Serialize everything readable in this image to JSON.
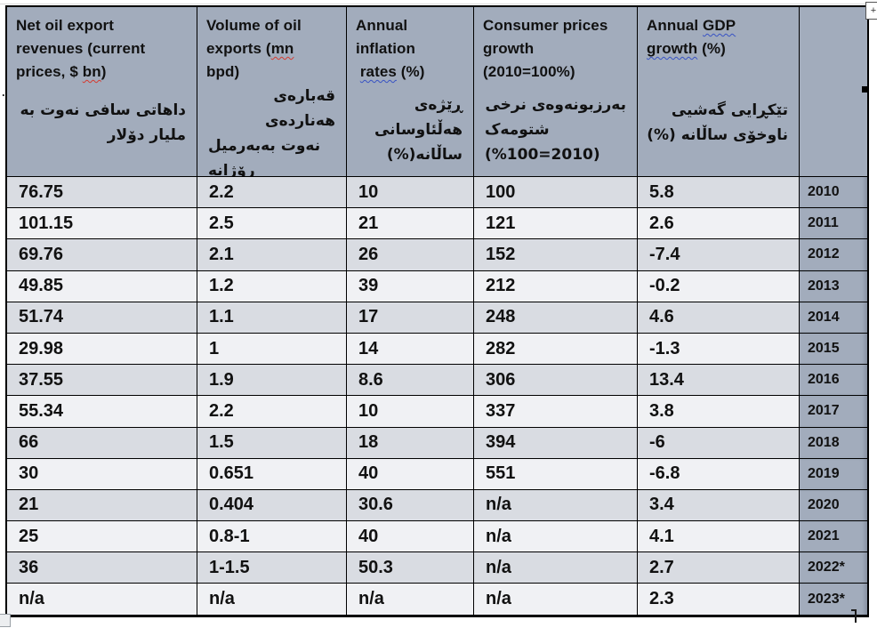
{
  "colors": {
    "header_bg": "#a2acbc",
    "row_dark": "#d9dce2",
    "row_light": "#f0f1f4",
    "border": "#000000",
    "squiggle_red": "#d63a2f",
    "squiggle_blue": "#3852c4"
  },
  "stray_period": ".",
  "table": {
    "header": {
      "cells": [
        {
          "en": [
            [
              [
                "Net oil export",
                null
              ]
            ],
            [
              [
                "revenues (current",
                null
              ]
            ],
            [
              [
                "prices, $ ",
                null
              ],
              [
                "bn",
                "red"
              ],
              [
                ")",
                null
              ]
            ]
          ],
          "ku": [
            {
              "t": "داهاتی  سافی نەوت  بە",
              "d": "rtl",
              "a": "r"
            },
            {
              "t": "ملیار دۆلار",
              "d": "rtl",
              "a": "r"
            }
          ]
        },
        {
          "en": [
            [
              [
                "Volume of oil",
                null
              ]
            ],
            [
              [
                "exports (",
                null
              ],
              [
                "mn",
                "red"
              ]
            ],
            [
              [
                "bpd)",
                null
              ]
            ]
          ],
          "ku": [
            {
              "t": "قەبارەی  هەناردەی",
              "d": "rtl",
              "a": "r"
            },
            {
              "t": "نەوت بەبەرمیل",
              "d": "rtl",
              "a": "l"
            },
            {
              "t": "ڕۆژانە",
              "d": "rtl",
              "a": "l"
            }
          ]
        },
        {
          "en": [
            [
              [
                "Annual",
                null
              ]
            ],
            [
              [
                "inflation",
                null
              ]
            ],
            [
              [
                " ",
                null
              ],
              [
                "rates",
                "blue"
              ],
              [
                " (%)",
                null
              ]
            ]
          ],
          "ku": [
            {
              "t": "ڕێژەی",
              "d": "rtl",
              "a": "r"
            },
            {
              "t": "هەڵئاوسانی",
              "d": "rtl",
              "a": "r"
            },
            {
              "t": "ساڵانە(%)",
              "d": "rtl",
              "a": "r"
            }
          ]
        },
        {
          "en": [
            [
              [
                "Consumer prices",
                null
              ]
            ],
            [
              [
                "growth",
                null
              ]
            ],
            [
              [
                "(2010=100%)",
                null
              ]
            ]
          ],
          "ku": [
            {
              "t": "بەرزبونەوەی نرخی",
              "d": "rtl",
              "a": "r"
            },
            {
              "t": "شتومەک",
              "d": "rtl",
              "a": "l"
            },
            {
              "t": "(%100=2010)",
              "d": "ltr",
              "a": "l"
            }
          ]
        },
        {
          "en": [
            [
              [
                "Annual ",
                null
              ],
              [
                "GDP",
                "blue"
              ]
            ],
            [
              [
                "growth",
                "blue"
              ],
              [
                " (%)",
                null
              ]
            ]
          ],
          "ku": [
            {
              "t": "تێکڕایی گەشیی",
              "d": "rtl",
              "a": "r"
            },
            {
              "t": "ناوخۆی ساڵانە (%)",
              "d": "rtl",
              "a": "r"
            }
          ]
        },
        {
          "en": [],
          "ku": []
        }
      ]
    },
    "rows": [
      {
        "year": "2010",
        "values": [
          "76.75",
          "2.2",
          "10",
          "100",
          "5.8"
        ]
      },
      {
        "year": "2011",
        "values": [
          "101.15",
          "2.5",
          "21",
          "121",
          "2.6"
        ]
      },
      {
        "year": "2012",
        "values": [
          "69.76",
          "2.1",
          "26",
          "152",
          "-7.4"
        ]
      },
      {
        "year": "2013",
        "values": [
          "49.85",
          "1.2",
          "39",
          "212",
          "-0.2"
        ]
      },
      {
        "year": "2014",
        "values": [
          "51.74",
          "1.1",
          "17",
          "248",
          "4.6"
        ]
      },
      {
        "year": "2015",
        "values": [
          "29.98",
          "1",
          "14",
          "282",
          "-1.3"
        ]
      },
      {
        "year": "2016",
        "values": [
          "37.55",
          "1.9",
          "8.6",
          "306",
          "13.4"
        ]
      },
      {
        "year": "2017",
        "values": [
          "55.34",
          "2.2",
          "10",
          "337",
          "3.8"
        ]
      },
      {
        "year": "2018",
        "values": [
          "66",
          "1.5",
          "18",
          "394",
          "-6"
        ]
      },
      {
        "year": "2019",
        "values": [
          "30",
          "0.651",
          "40",
          "551",
          "-6.8"
        ]
      },
      {
        "year": "2020",
        "values": [
          "21",
          "0.404",
          "30.6",
          "n/a",
          "3.4"
        ]
      },
      {
        "year": "2021",
        "values": [
          "25",
          "0.8-1",
          "40",
          "n/a",
          "4.1"
        ]
      },
      {
        "year": "2022*",
        "values": [
          "36",
          "1-1.5",
          "50.3",
          "n/a",
          "2.7"
        ]
      },
      {
        "year": "2023*",
        "values": [
          "n/a",
          "n/a",
          "n/a",
          "n/a",
          "2.3"
        ]
      }
    ]
  }
}
